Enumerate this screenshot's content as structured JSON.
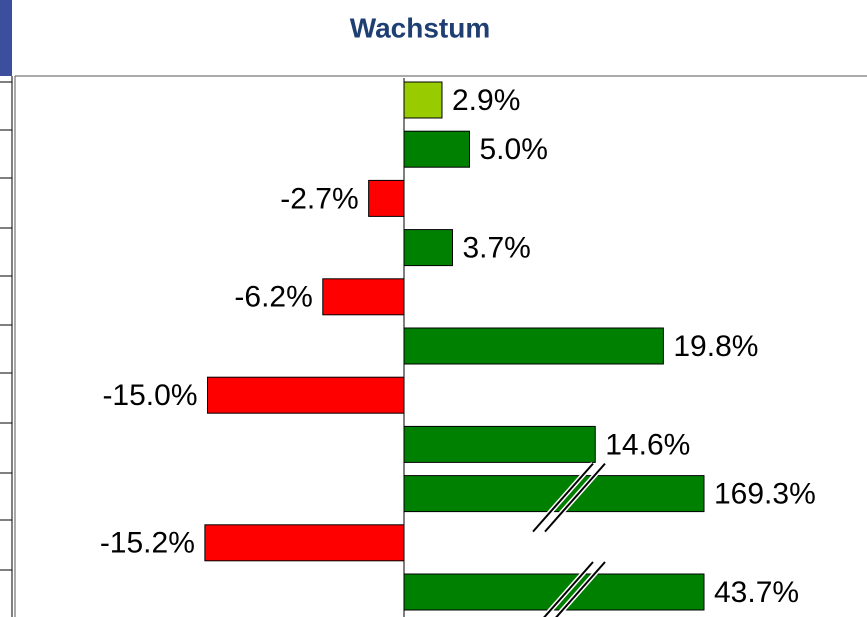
{
  "chart_data": {
    "type": "bar",
    "orientation": "horizontal",
    "title": "Wachstum",
    "values": [
      2.9,
      5.0,
      -2.7,
      3.7,
      -6.2,
      19.8,
      -15.0,
      14.6,
      169.3,
      -15.2,
      43.7
    ],
    "value_labels": [
      "2.9%",
      "5.0%",
      "-2.7%",
      "3.7%",
      "-6.2%",
      "19.8%",
      "-15.0%",
      "14.6%",
      "169.3%",
      "-15.2%",
      "43.7%"
    ],
    "colors": [
      "#99cc00",
      "#008000",
      "#ff0000",
      "#008000",
      "#ff0000",
      "#008000",
      "#ff0000",
      "#008000",
      "#008000",
      "#ff0000",
      "#008000"
    ]
  }
}
